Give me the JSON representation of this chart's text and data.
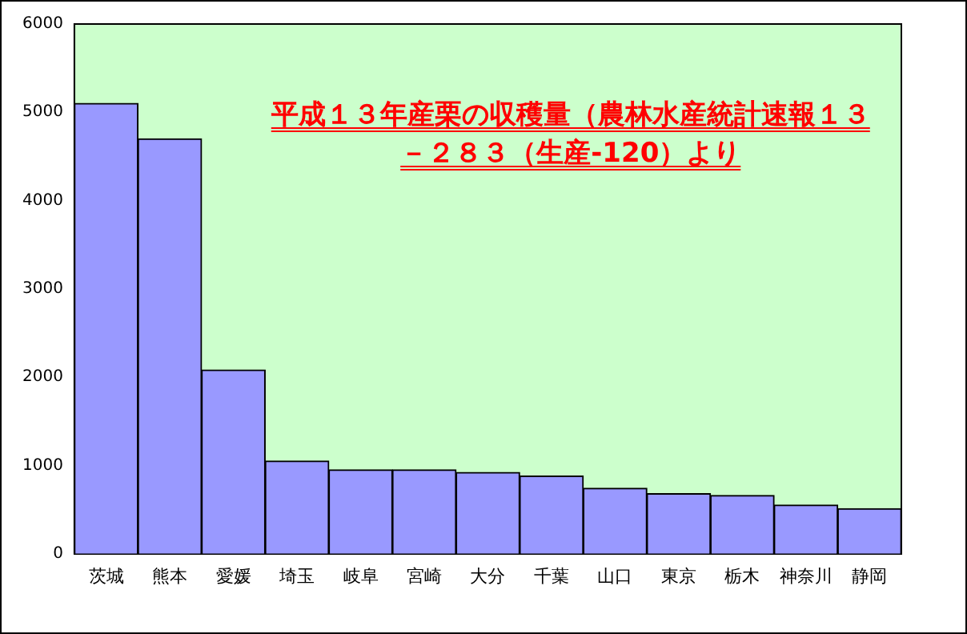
{
  "chart_data": {
    "type": "bar",
    "title": "平成１３年産栗の収穫量（農林水産統計速報１３－２８３（生産-120）より",
    "categories": [
      "茨城",
      "熊本",
      "愛媛",
      "埼玉",
      "岐阜",
      "宮崎",
      "大分",
      "千葉",
      "山口",
      "東京",
      "栃木",
      "神奈川",
      "静岡"
    ],
    "values": [
      5100,
      4700,
      2080,
      1050,
      950,
      950,
      920,
      880,
      740,
      680,
      660,
      550,
      510
    ],
    "color": "#9999ff",
    "ylim": [
      0,
      6000
    ],
    "yticks": [
      0,
      1000,
      2000,
      3000,
      4000,
      5000,
      6000
    ],
    "grid": false,
    "legend": false
  }
}
